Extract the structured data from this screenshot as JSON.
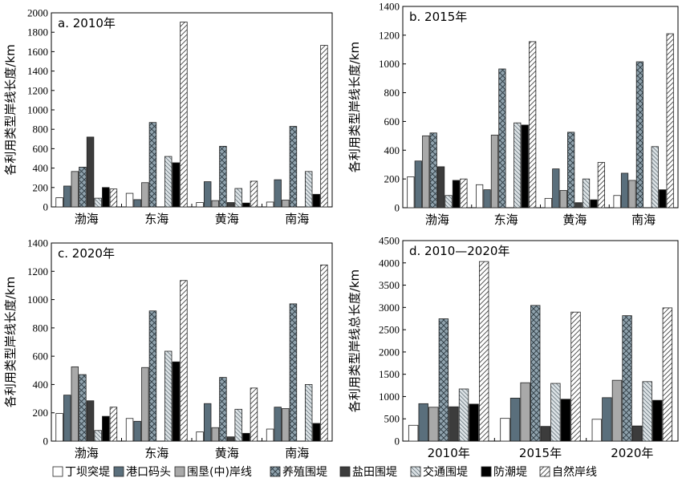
{
  "chart_data": [
    {
      "type": "bar",
      "title": "a. 2010年",
      "ylabel": "各利用类型岸线长度/km",
      "ylim": [
        0,
        2000
      ],
      "yticks": [
        0,
        200,
        400,
        600,
        800,
        1000,
        1200,
        1400,
        1600,
        1800,
        2000
      ],
      "categories": [
        "渤海",
        "东海",
        "黄海",
        "南海"
      ],
      "series": [
        {
          "name": "丁坝突堤",
          "values": [
            95,
            140,
            45,
            50
          ]
        },
        {
          "name": "港口码头",
          "values": [
            215,
            75,
            260,
            280
          ]
        },
        {
          "name": "围垦(中)岸线",
          "values": [
            365,
            250,
            65,
            70
          ]
        },
        {
          "name": "养殖围堤",
          "values": [
            410,
            870,
            625,
            830
          ]
        },
        {
          "name": "盐田围堤",
          "values": [
            720,
            0,
            45,
            0
          ]
        },
        {
          "name": "交通围堤",
          "values": [
            90,
            520,
            190,
            365
          ]
        },
        {
          "name": "防潮堤",
          "values": [
            200,
            455,
            40,
            130
          ]
        },
        {
          "name": "自然岸线",
          "values": [
            185,
            1905,
            265,
            1665
          ]
        }
      ]
    },
    {
      "type": "bar",
      "title": "b. 2015年",
      "ylabel": "各利用类型岸线长度/km",
      "ylim": [
        0,
        1400
      ],
      "yticks": [
        0,
        200,
        400,
        600,
        800,
        1000,
        1200,
        1400
      ],
      "categories": [
        "渤海",
        "东海",
        "黄海",
        "南海"
      ],
      "series": [
        {
          "name": "丁坝突堤",
          "values": [
            215,
            160,
            65,
            85
          ]
        },
        {
          "name": "港口码头",
          "values": [
            325,
            125,
            270,
            240
          ]
        },
        {
          "name": "围垦(中)岸线",
          "values": [
            500,
            505,
            120,
            190
          ]
        },
        {
          "name": "养殖围堤",
          "values": [
            520,
            965,
            525,
            1015
          ]
        },
        {
          "name": "盐田围堤",
          "values": [
            285,
            0,
            35,
            0
          ]
        },
        {
          "name": "交通围堤",
          "values": [
            85,
            590,
            200,
            425
          ]
        },
        {
          "name": "防潮堤",
          "values": [
            190,
            575,
            55,
            125
          ]
        },
        {
          "name": "自然岸线",
          "values": [
            200,
            1155,
            315,
            1210
          ]
        }
      ]
    },
    {
      "type": "bar",
      "title": "c. 2020年",
      "ylabel": "各利用类型岸线长度/km",
      "ylim": [
        0,
        1400
      ],
      "yticks": [
        0,
        200,
        400,
        600,
        800,
        1000,
        1200,
        1400
      ],
      "categories": [
        "渤海",
        "东海",
        "黄海",
        "南海"
      ],
      "series": [
        {
          "name": "丁坝突堤",
          "values": [
            195,
            160,
            65,
            85
          ]
        },
        {
          "name": "港口码头",
          "values": [
            325,
            140,
            265,
            240
          ]
        },
        {
          "name": "围垦(中)岸线",
          "values": [
            525,
            520,
            95,
            230
          ]
        },
        {
          "name": "养殖围堤",
          "values": [
            470,
            920,
            450,
            970
          ]
        },
        {
          "name": "盐田围堤",
          "values": [
            285,
            0,
            30,
            0
          ]
        },
        {
          "name": "交通围堤",
          "values": [
            75,
            635,
            225,
            400
          ]
        },
        {
          "name": "防潮堤",
          "values": [
            175,
            560,
            55,
            125
          ]
        },
        {
          "name": "自然岸线",
          "values": [
            240,
            1135,
            375,
            1245
          ]
        }
      ]
    },
    {
      "type": "bar",
      "title": "d. 2010—2020年",
      "ylabel": "各利用类型岸线总长度/km",
      "ylim": [
        0,
        4500
      ],
      "yticks": [
        0,
        500,
        1000,
        1500,
        2000,
        2500,
        3000,
        3500,
        4000,
        4500
      ],
      "categories": [
        "2010年",
        "2015年",
        "2020年"
      ],
      "series": [
        {
          "name": "丁坝突堤",
          "values": [
            355,
            510,
            490
          ]
        },
        {
          "name": "港口码头",
          "values": [
            840,
            965,
            975
          ]
        },
        {
          "name": "围垦(中)岸线",
          "values": [
            760,
            1310,
            1365
          ]
        },
        {
          "name": "养殖围堤",
          "values": [
            2745,
            3045,
            2815
          ]
        },
        {
          "name": "盐田围堤",
          "values": [
            770,
            330,
            340
          ]
        },
        {
          "name": "交通围堤",
          "values": [
            1170,
            1295,
            1335
          ]
        },
        {
          "name": "防潮堤",
          "values": [
            830,
            940,
            915
          ]
        },
        {
          "name": "自然岸线",
          "values": [
            4030,
            2895,
            2990
          ]
        }
      ]
    }
  ],
  "legend": {
    "placement": "bottom",
    "entries": [
      "丁坝突堤",
      "港口码头",
      "围垦(中)岸线",
      "养殖围堤",
      "盐田围堤",
      "交通围堤",
      "防潮堤",
      "自然岸线"
    ]
  },
  "series_styles": [
    {
      "fill": "#ffffff",
      "pattern": "none"
    },
    {
      "fill": "#5a6f7c",
      "pattern": "none"
    },
    {
      "fill": "#a9a9a9",
      "pattern": "none"
    },
    {
      "fill": "#8fa2ad",
      "pattern": "crosshatch"
    },
    {
      "fill": "#3c3c3c",
      "pattern": "none"
    },
    {
      "fill": "#dde3e6",
      "pattern": "backslash"
    },
    {
      "fill": "#000000",
      "pattern": "none"
    },
    {
      "fill": "#ffffff",
      "pattern": "slash"
    }
  ]
}
